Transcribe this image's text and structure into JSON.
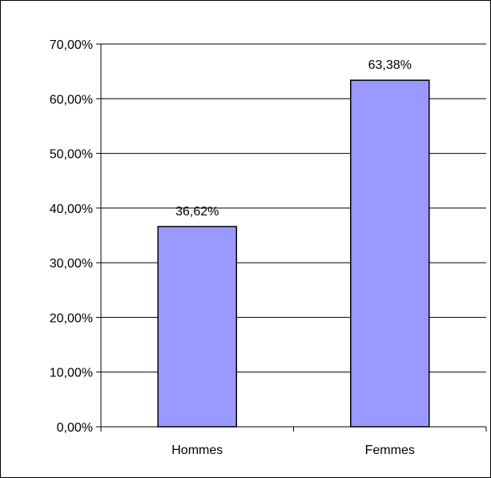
{
  "chart_data": {
    "type": "bar",
    "categories": [
      "Hommes",
      "Femmes"
    ],
    "values": [
      36.62,
      63.38
    ],
    "value_labels": [
      "36,62%",
      "63,38%"
    ],
    "title": "",
    "xlabel": "",
    "ylabel": "",
    "ylim": [
      0,
      70
    ],
    "yticks": [
      0,
      10,
      20,
      30,
      40,
      50,
      60,
      70
    ],
    "ytick_labels": [
      "0,00%",
      "10,00%",
      "20,00%",
      "30,00%",
      "40,00%",
      "50,00%",
      "60,00%",
      "70,00%"
    ],
    "grid": true,
    "legend": "none",
    "colors": {
      "bar_fill": "#9999FF",
      "bar_stroke": "#000000",
      "gridline": "#000000",
      "background": "#FFFFFF"
    }
  }
}
